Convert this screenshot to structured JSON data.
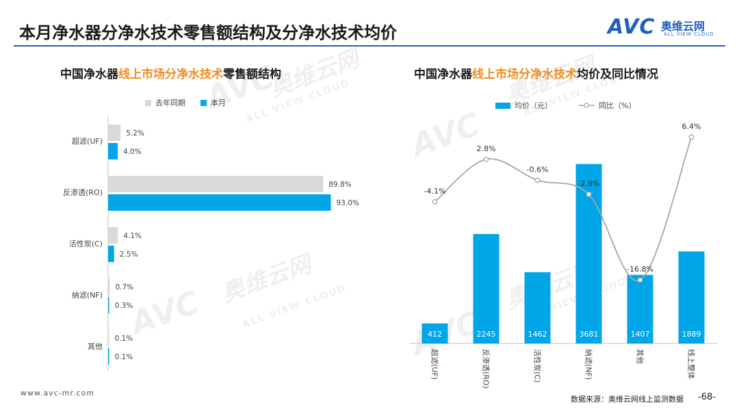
{
  "page_title": "本月净水器分净水技术零售额结构及分净水技术均价",
  "logo": {
    "mark": "AVC",
    "name_cn": "奥维云网",
    "name_en": "ALL VIEW CLOUD"
  },
  "watermark": {
    "mark": "AVC",
    "name_cn": "奥维云网",
    "name_en": "ALL VIEW CLOUD"
  },
  "footer": {
    "url": "www.avc-mr.com",
    "source": "数据来源：奥维云网线上监测数据",
    "page": "-68-"
  },
  "colors": {
    "accent": "#00a6e8",
    "gray": "#d9d9d9",
    "line": "#a6a6a6",
    "highlight": "#f08c1e",
    "brand": "#1f5fbf"
  },
  "left_chart": {
    "title_pre": "中国净水器",
    "title_hl": "线上市场分净水技术",
    "title_post": "零售额结构",
    "legend": {
      "prev": "去年同期",
      "curr": "本月"
    }
  },
  "right_chart": {
    "title_pre": "中国净水器",
    "title_hl": "线上市场分净水技术",
    "title_post": "均价及同比情况",
    "legend": {
      "bar": "均价（元）",
      "line": "同比（%）"
    }
  },
  "chart_data": [
    {
      "type": "bar",
      "orientation": "horizontal",
      "title": "中国净水器线上市场分净水技术零售额结构",
      "categories": [
        "超滤(UF)",
        "反渗透(RO)",
        "活性炭(C)",
        "纳滤(NF)",
        "其他"
      ],
      "series": [
        {
          "name": "去年同期",
          "values": [
            5.2,
            89.8,
            4.1,
            0.7,
            0.1
          ],
          "labels": [
            "5.2%",
            "89.8%",
            "4.1%",
            "0.7%",
            "0.1%"
          ],
          "color": "#d9d9d9"
        },
        {
          "name": "本月",
          "values": [
            4.0,
            93.0,
            2.5,
            0.3,
            0.1
          ],
          "labels": [
            "4.0%",
            "93.0%",
            "2.5%",
            "0.3%",
            "0.1%"
          ],
          "color": "#00a6e8"
        }
      ],
      "unit": "%",
      "xlim": [
        0,
        100
      ],
      "legend_position": "top"
    },
    {
      "type": "bar+line",
      "title": "中国净水器线上市场分净水技术均价及同比情况",
      "categories": [
        "超滤(UF)",
        "反渗透(RO)",
        "活性炭(C)",
        "纳滤(NF)",
        "其他",
        "线上整体"
      ],
      "bar_series": {
        "name": "均价（元）",
        "values": [
          412,
          2245,
          1462,
          3681,
          1407,
          1889
        ],
        "color": "#00a6e8"
      },
      "line_series": {
        "name": "同比（%）",
        "values": [
          -4.1,
          2.8,
          -0.6,
          -2.9,
          -16.8,
          6.4
        ],
        "labels": [
          "-4.1%",
          "2.8%",
          "-0.6%",
          "-2.9%",
          "-16.8%",
          "6.4%"
        ],
        "color": "#a6a6a6"
      },
      "ylim_bar": [
        0,
        4000
      ],
      "ylim_line": [
        -20,
        10
      ],
      "legend_position": "top"
    }
  ]
}
